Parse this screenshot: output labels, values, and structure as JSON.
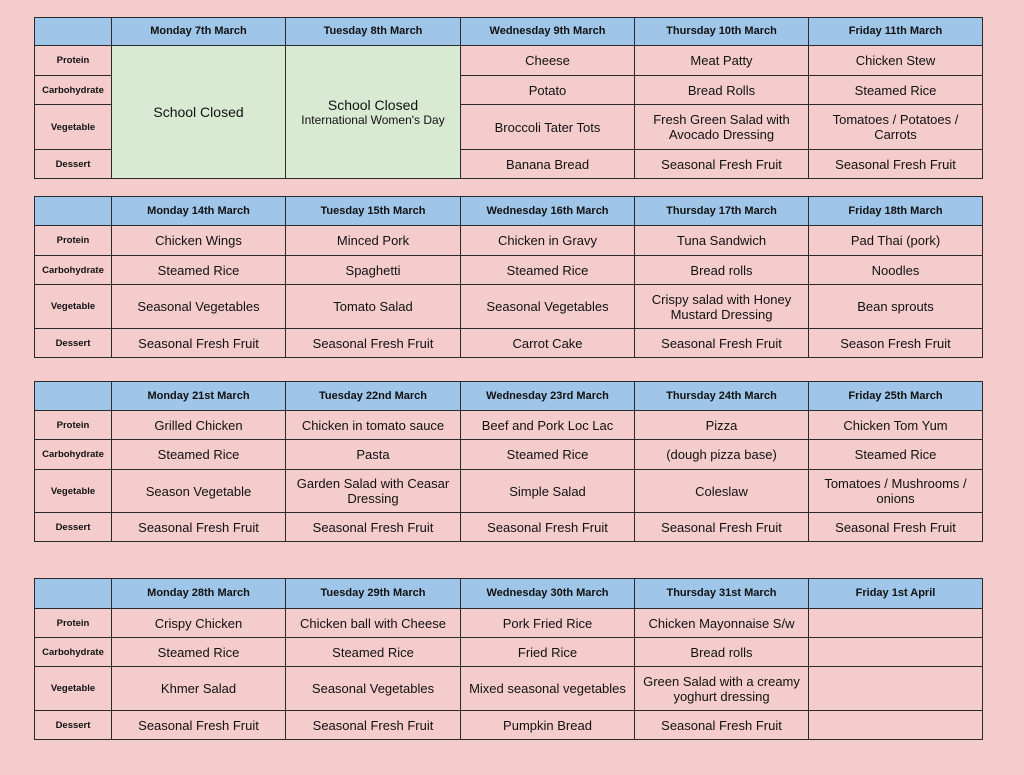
{
  "colors": {
    "background": "#f4cccc",
    "header": "#9fc5e8",
    "closed": "#d9ead3"
  },
  "row_labels": [
    "Protein",
    "Carbohydrate",
    "Vegetable",
    "Dessert"
  ],
  "weeks": [
    {
      "days": [
        {
          "date": "Monday 7th March",
          "closed": {
            "title": "School Closed"
          }
        },
        {
          "date": "Tuesday 8th March",
          "closed": {
            "title": "School Closed",
            "note": "International Women's Day"
          }
        },
        {
          "date": "Wednesday 9th March",
          "meals": [
            "Cheese",
            "Potato",
            "Broccoli Tater Tots",
            "Banana Bread"
          ]
        },
        {
          "date": "Thursday 10th March",
          "meals": [
            "Meat Patty",
            "Bread Rolls",
            "Fresh Green Salad with Avocado Dressing",
            "Seasonal Fresh Fruit"
          ]
        },
        {
          "date": "Friday 11th March",
          "meals": [
            "Chicken Stew",
            "Steamed Rice",
            "Tomatoes / Potatoes / Carrots",
            "Seasonal Fresh Fruit"
          ]
        }
      ]
    },
    {
      "days": [
        {
          "date": "Monday 14th March",
          "meals": [
            "Chicken Wings",
            "Steamed Rice",
            "Seasonal Vegetables",
            "Seasonal Fresh Fruit"
          ]
        },
        {
          "date": "Tuesday 15th March",
          "meals": [
            "Minced Pork",
            "Spaghetti",
            "Tomato Salad",
            "Seasonal Fresh Fruit"
          ]
        },
        {
          "date": "Wednesday 16th March",
          "meals": [
            "Chicken in Gravy",
            "Steamed Rice",
            "Seasonal Vegetables",
            "Carrot Cake"
          ]
        },
        {
          "date": "Thursday 17th March",
          "meals": [
            "Tuna Sandwich",
            "Bread rolls",
            "Crispy salad with Honey Mustard Dressing",
            "Seasonal Fresh Fruit"
          ]
        },
        {
          "date": "Friday 18th March",
          "meals": [
            "Pad Thai (pork)",
            "Noodles",
            "Bean sprouts",
            "Season Fresh Fruit"
          ]
        }
      ]
    },
    {
      "days": [
        {
          "date": "Monday 21st March",
          "meals": [
            "Grilled Chicken",
            "Steamed Rice",
            "Season Vegetable",
            "Seasonal Fresh Fruit"
          ]
        },
        {
          "date": "Tuesday 22nd March",
          "meals": [
            "Chicken in tomato sauce",
            "Pasta",
            "Garden Salad with Ceasar Dressing",
            "Seasonal Fresh Fruit"
          ]
        },
        {
          "date": "Wednesday 23rd March",
          "meals": [
            "Beef and Pork Loc Lac",
            "Steamed Rice",
            "Simple Salad",
            "Seasonal Fresh Fruit"
          ]
        },
        {
          "date": "Thursday 24th March",
          "meals": [
            "Pizza",
            "(dough pizza base)",
            "Coleslaw",
            "Seasonal Fresh Fruit"
          ]
        },
        {
          "date": "Friday 25th March",
          "meals": [
            "Chicken Tom Yum",
            "Steamed Rice",
            "Tomatoes / Mushrooms / onions",
            "Seasonal Fresh Fruit"
          ]
        }
      ]
    },
    {
      "days": [
        {
          "date": "Monday 28th March",
          "meals": [
            "Crispy Chicken",
            "Steamed Rice",
            "Khmer Salad",
            "Seasonal Fresh Fruit"
          ]
        },
        {
          "date": "Tuesday 29th March",
          "meals": [
            "Chicken ball with Cheese",
            "Steamed Rice",
            "Seasonal Vegetables",
            "Seasonal Fresh Fruit"
          ]
        },
        {
          "date": "Wednesday 30th March",
          "meals": [
            "Pork Fried Rice",
            "Fried Rice",
            "Mixed seasonal vegetables",
            "Pumpkin Bread"
          ]
        },
        {
          "date": "Thursday 31st March",
          "meals": [
            "Chicken Mayonnaise S/w",
            "Bread rolls",
            "Green Salad with a creamy yoghurt dressing",
            "Seasonal Fresh Fruit"
          ]
        },
        {
          "date": "Friday 1st April",
          "meals": [
            "",
            "",
            "",
            ""
          ]
        }
      ]
    }
  ]
}
